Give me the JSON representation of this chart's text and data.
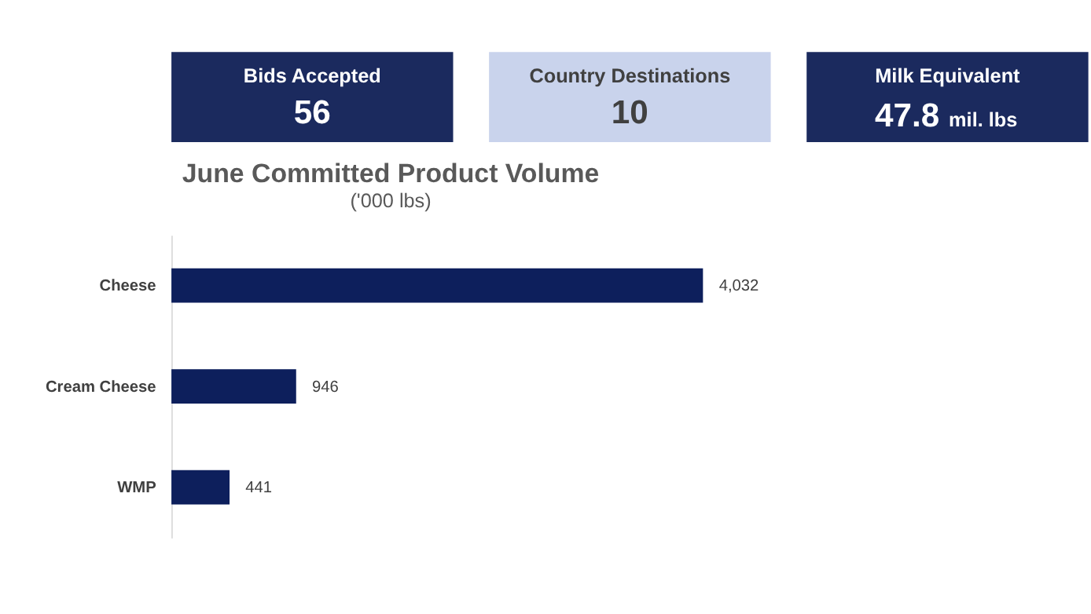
{
  "chart_data": [
    {
      "type": "other",
      "title": "Bids Accepted",
      "annotations": [
        "56"
      ],
      "color": "#1b2a5e"
    },
    {
      "type": "other",
      "title": "Country Destinations",
      "annotations": [
        "10"
      ],
      "color": "#c9d3ec"
    },
    {
      "type": "other",
      "title": "Milk Equivalent",
      "annotations": [
        "47.8",
        "mil. lbs"
      ],
      "color": "#1b2a5e"
    },
    {
      "type": "bar",
      "orientation": "horizontal",
      "title": "June Committed Product Volume",
      "subtitle": "('000 lbs)",
      "categories": [
        "Cheese",
        "Cream Cheese",
        "WMP"
      ],
      "values": [
        4032,
        946,
        441
      ],
      "value_labels": [
        "4,032",
        "946",
        "441"
      ],
      "color": "#0d1f5c",
      "grid": false,
      "tick_labels": "y"
    }
  ]
}
